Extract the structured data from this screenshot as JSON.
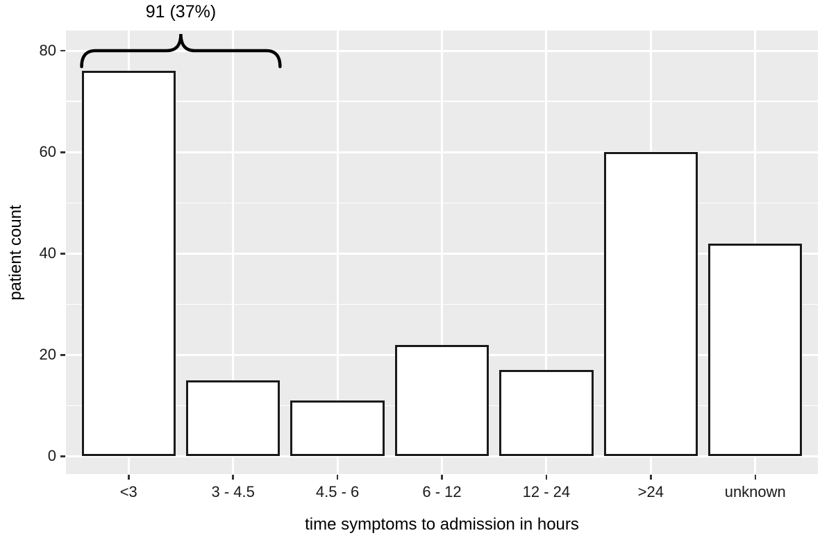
{
  "chart_data": {
    "type": "bar",
    "title": "",
    "categories": [
      "<3",
      "3 - 4.5",
      "4.5 - 6",
      "6 - 12",
      "12 - 24",
      ">24",
      "unknown"
    ],
    "values": [
      76,
      15,
      11,
      22,
      17,
      60,
      42
    ],
    "xlabel": "time symptoms to admission in hours",
    "ylabel": "patient count",
    "ylim": [
      -3.5,
      84
    ],
    "yticks": [
      0,
      20,
      40,
      60,
      80
    ],
    "yticks_minor": [
      10,
      30,
      50,
      70
    ],
    "grid": "on",
    "legend": "none",
    "panel_bg": "#EBEBEB",
    "grid_color": "#FFFFFF",
    "bar_fill": "#FFFFFF",
    "bar_stroke": "#1A1A1A",
    "annotation": {
      "text": "91 (37%)",
      "brace_from_category": "<3",
      "brace_to_category": "3 - 4.5"
    }
  }
}
